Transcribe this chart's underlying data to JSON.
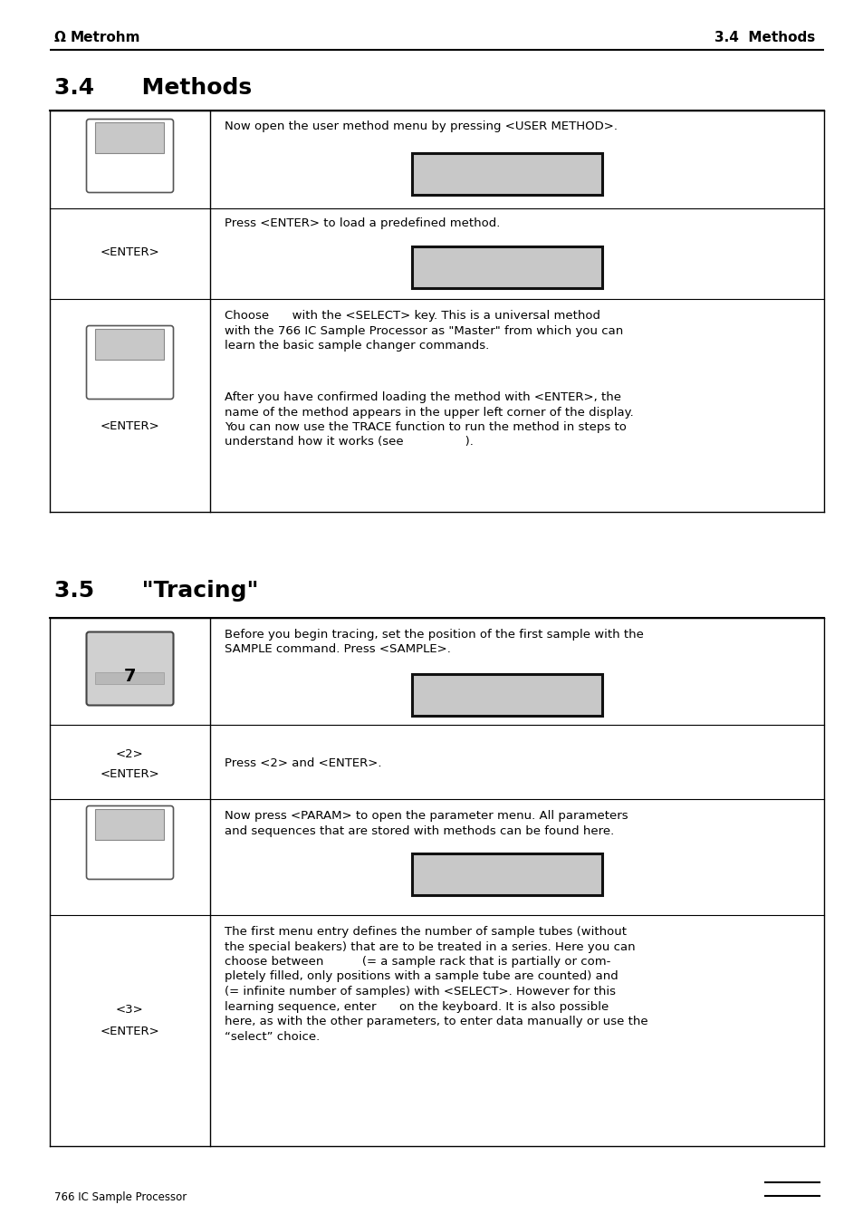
{
  "page_width": 9.54,
  "page_height": 13.51,
  "bg_color": "#ffffff",
  "header_logo_text": "Metrohm",
  "header_right_text": "3.4  Methods",
  "section1_title": "3.4      Methods",
  "section2_title": "3.5      \"Tracing\"",
  "footer_text": "766 IC Sample Processor",
  "text_color": "#000000",
  "divider_color": "#000000",
  "screen_fill": "#c8c8c8",
  "screen_edge": "#111111",
  "button_edge": "#555555",
  "button_fill": "#ffffff",
  "button_inner_fill": "#c8c8c8"
}
